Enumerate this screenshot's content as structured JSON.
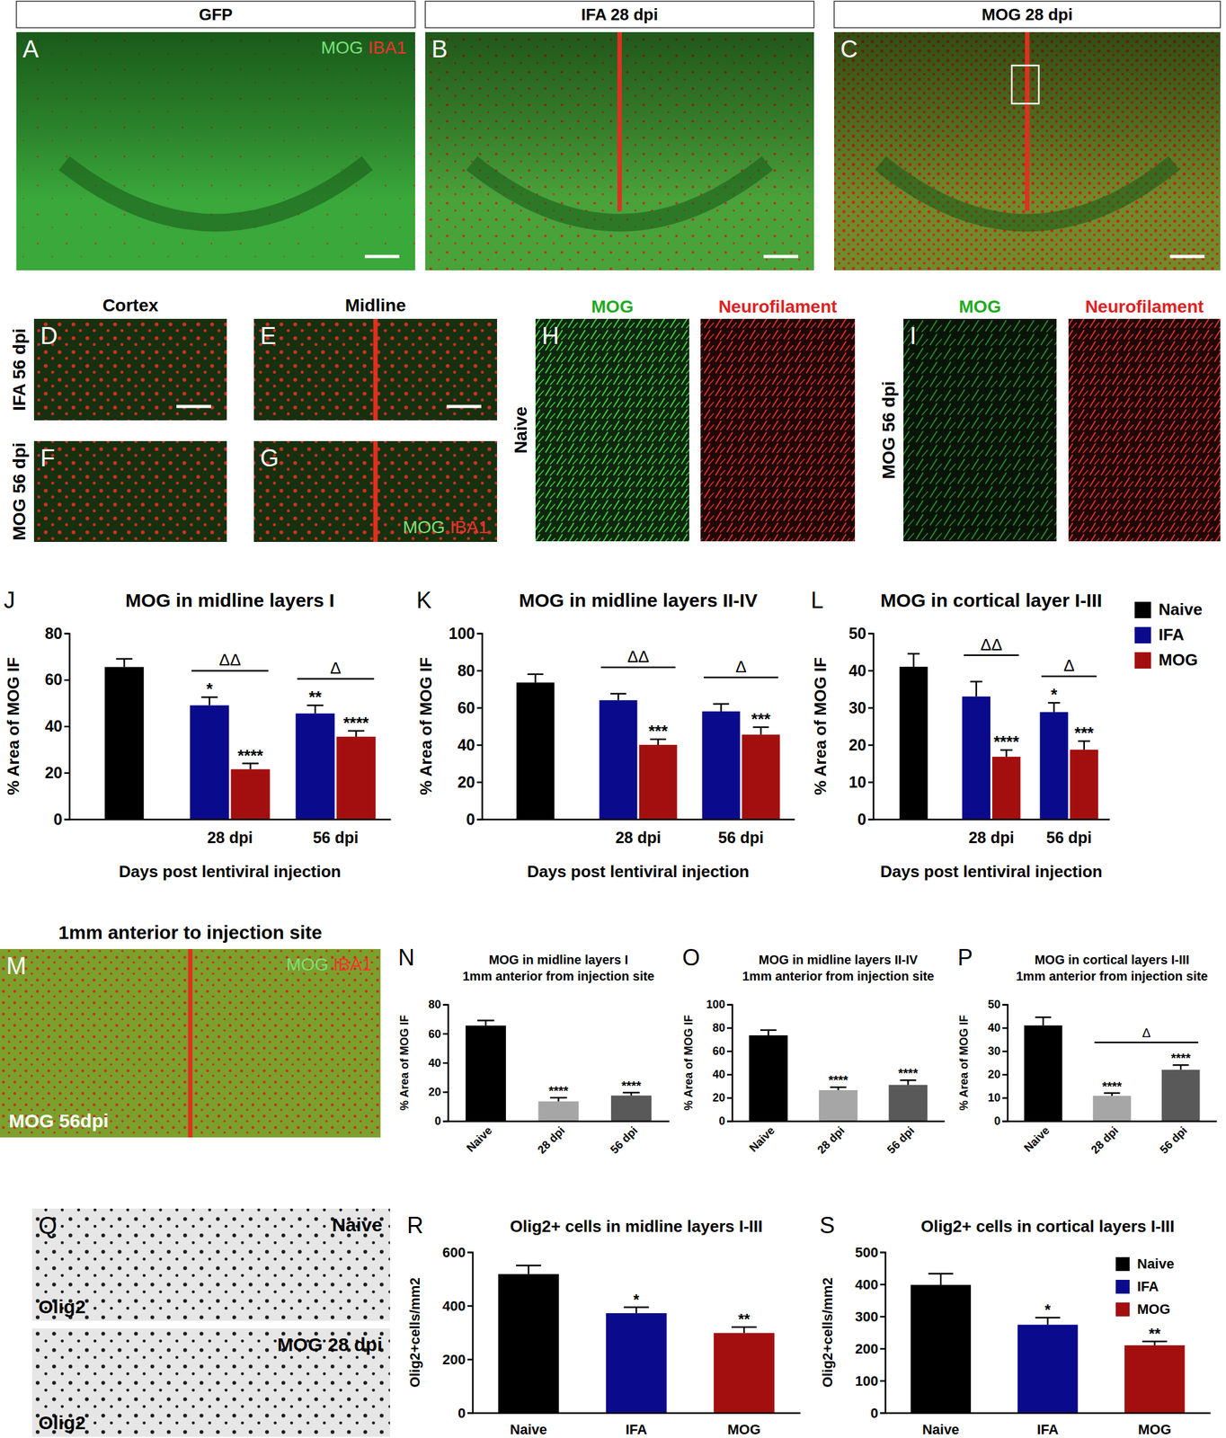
{
  "chart_data": [
    {
      "label": "J",
      "type": "bar",
      "title": "MOG in midline layers I",
      "x_label": "Days post lentiviral injection",
      "y_label": "% Area of MOG IF",
      "categories": [
        null,
        "28 dpi",
        "56 dpi"
      ],
      "series": [
        {
          "color": "#000000",
          "values": [
            65.5,
            null,
            null
          ],
          "errors": [
            3.5,
            null,
            null
          ]
        },
        {
          "color": "#0a0a8c",
          "values": [
            null,
            49,
            45.5
          ],
          "errors": [
            null,
            3.5,
            3.5
          ],
          "significance": [
            null,
            "*",
            "**"
          ]
        },
        {
          "color": "#a30f0f",
          "values": [
            null,
            21.5,
            35.5
          ],
          "errors": [
            null,
            2.5,
            2.5
          ],
          "significance": [
            null,
            "****",
            "****"
          ]
        }
      ],
      "comparisons": [
        {
          "label": "ΔΔ",
          "from": 1,
          "to": 1
        },
        {
          "label": "Δ",
          "from": 2,
          "to": 2
        }
      ],
      "ylim": [
        0,
        80
      ],
      "yticks": [
        0,
        20,
        40,
        60,
        80
      ]
    },
    {
      "label": "K",
      "type": "bar",
      "title": "MOG in midline layers II-IV",
      "x_label": "Days post lentiviral injection",
      "y_label": "% Area of MOG IF",
      "categories": [
        null,
        "28 dpi",
        "56 dpi"
      ],
      "series": [
        {
          "color": "#000000",
          "values": [
            73.5,
            null,
            null
          ],
          "errors": [
            4.5,
            null,
            null
          ]
        },
        {
          "color": "#0a0a8c",
          "values": [
            null,
            64,
            58
          ],
          "errors": [
            null,
            3.5,
            4
          ]
        },
        {
          "color": "#a30f0f",
          "values": [
            null,
            40,
            45.5
          ],
          "errors": [
            null,
            3,
            4
          ],
          "significance": [
            null,
            "***",
            "***"
          ]
        }
      ],
      "comparisons": [
        {
          "label": "ΔΔ",
          "from": 1,
          "to": 1
        },
        {
          "label": "Δ",
          "from": 2,
          "to": 2
        }
      ],
      "ylim": [
        0,
        100
      ],
      "yticks": [
        0,
        20,
        40,
        60,
        80,
        100
      ]
    },
    {
      "label": "L",
      "type": "bar",
      "title": "MOG in cortical layer I-III",
      "x_label": "Days post lentiviral injection",
      "y_label": "% Area of MOG IF",
      "categories": [
        null,
        "28 dpi",
        "56 dpi"
      ],
      "series": [
        {
          "name": "Naive",
          "color": "#000000",
          "values": [
            41,
            null,
            null
          ],
          "errors": [
            3.5,
            null,
            null
          ]
        },
        {
          "name": "IFA",
          "color": "#0a0a8c",
          "values": [
            null,
            33,
            28.8
          ],
          "errors": [
            null,
            4,
            2.5
          ],
          "significance": [
            null,
            null,
            "*"
          ]
        },
        {
          "name": "MOG",
          "color": "#a30f0f",
          "values": [
            null,
            16.8,
            18.7
          ],
          "errors": [
            null,
            1.8,
            2.3
          ],
          "significance": [
            null,
            "****",
            "***"
          ]
        }
      ],
      "comparisons": [
        {
          "label": "ΔΔ",
          "from": 1,
          "to": 1
        },
        {
          "label": "Δ",
          "from": 2,
          "to": 2
        }
      ],
      "legend": "right",
      "ylim": [
        0,
        50
      ],
      "yticks": [
        0,
        10,
        20,
        30,
        40,
        50
      ]
    },
    {
      "label": "N",
      "type": "bar",
      "title": "MOG in midline layers I",
      "subtitle": "1mm anterior from injection site",
      "y_label": "% Area of MOG IF",
      "categories": [
        "Naive",
        "28 dpi",
        "56 dpi"
      ],
      "colors": [
        "#000000",
        "#a6a6a6",
        "#595959"
      ],
      "values": [
        65.5,
        13.5,
        17.5
      ],
      "errors": [
        3.5,
        2.5,
        2
      ],
      "significance": [
        null,
        "****",
        "****"
      ],
      "ylim": [
        0,
        80
      ],
      "yticks": [
        0,
        20,
        40,
        60,
        80
      ]
    },
    {
      "label": "O",
      "type": "bar",
      "title": "MOG in midline layers II-IV",
      "subtitle": "1mm anterior from injection site",
      "y_label": "% Area of MOG IF",
      "categories": [
        "Naive",
        "28 dpi",
        "56 dpi"
      ],
      "colors": [
        "#000000",
        "#a6a6a6",
        "#595959"
      ],
      "values": [
        73.5,
        26.5,
        31
      ],
      "errors": [
        4.5,
        2.5,
        4
      ],
      "significance": [
        null,
        "****",
        "****"
      ],
      "ylim": [
        0,
        100
      ],
      "yticks": [
        0,
        20,
        40,
        60,
        80,
        100
      ]
    },
    {
      "label": "P",
      "type": "bar",
      "title": "MOG in cortical layers I-III",
      "subtitle": "1mm anterior from injection site",
      "y_label": "% Area of MOG IF",
      "categories": [
        "Naive",
        "28 dpi",
        "56 dpi"
      ],
      "colors": [
        "#000000",
        "#a6a6a6",
        "#595959"
      ],
      "values": [
        41,
        10.8,
        22
      ],
      "errors": [
        3.5,
        1.2,
        2
      ],
      "significance": [
        null,
        "****",
        "****"
      ],
      "comparisons": [
        {
          "label": "Δ",
          "from": 1,
          "to": 2
        }
      ],
      "ylim": [
        0,
        50
      ],
      "yticks": [
        0,
        10,
        20,
        30,
        40,
        50
      ]
    },
    {
      "label": "R",
      "type": "bar",
      "title": "Olig2+ cells in midline layers I-III",
      "y_label": "Olig2+cells/mm2",
      "categories": [
        "Naive",
        "IFA",
        "MOG"
      ],
      "colors": [
        "#000000",
        "#0a0a8c",
        "#a30f0f"
      ],
      "values": [
        518,
        372,
        298
      ],
      "errors": [
        32,
        22,
        22
      ],
      "significance": [
        null,
        "*",
        "**"
      ],
      "ylim": [
        0,
        600
      ],
      "yticks": [
        0,
        200,
        400,
        600
      ]
    },
    {
      "label": "S",
      "type": "bar",
      "title": "Olig2+ cells in cortical layers I-III",
      "y_label": "Olig2+cells/mm2",
      "categories": [
        "Naive",
        "IFA",
        "MOG"
      ],
      "colors": [
        "#000000",
        "#0a0a8c",
        "#a30f0f"
      ],
      "values": [
        398,
        274,
        210
      ],
      "errors": [
        35,
        22,
        12
      ],
      "significance": [
        null,
        "*",
        "**"
      ],
      "legend": "top-right",
      "ylim": [
        0,
        500
      ],
      "yticks": [
        0,
        100,
        200,
        300,
        400,
        500
      ]
    }
  ],
  "images": [
    {
      "letter": "A",
      "header": "GFP",
      "stains": [
        "MOG",
        "IBA1"
      ]
    },
    {
      "letter": "B",
      "header": "IFA 28 dpi"
    },
    {
      "letter": "C",
      "header": "MOG 28 dpi"
    },
    {
      "letter": "D",
      "column_title": "Cortex",
      "row_label": "IFA 56 dpi"
    },
    {
      "letter": "E",
      "column_title": "Midline"
    },
    {
      "letter": "F",
      "row_label": "MOG 56 dpi"
    },
    {
      "letter": "G",
      "stains": [
        "MOG",
        "IBA1"
      ]
    },
    {
      "letter": "H",
      "row_label": "Naive",
      "tiles": [
        {
          "title": "MOG"
        },
        {
          "title": "Neurofilament"
        }
      ]
    },
    {
      "letter": "I",
      "row_label": "MOG 56 dpi",
      "tiles": [
        {
          "title": "MOG"
        },
        {
          "title": "Neurofilament"
        }
      ]
    },
    {
      "letter": "M",
      "title": "1mm anterior to injection site",
      "stains": [
        "MOG",
        "IBA1"
      ],
      "inset_label": "MOG 56dpi"
    },
    {
      "letter": "Q",
      "tiles": [
        {
          "corner_label": "Naive",
          "stain": "Olig2"
        },
        {
          "corner_label": "MOG 28 dpi",
          "stain": "Olig2"
        }
      ]
    }
  ]
}
